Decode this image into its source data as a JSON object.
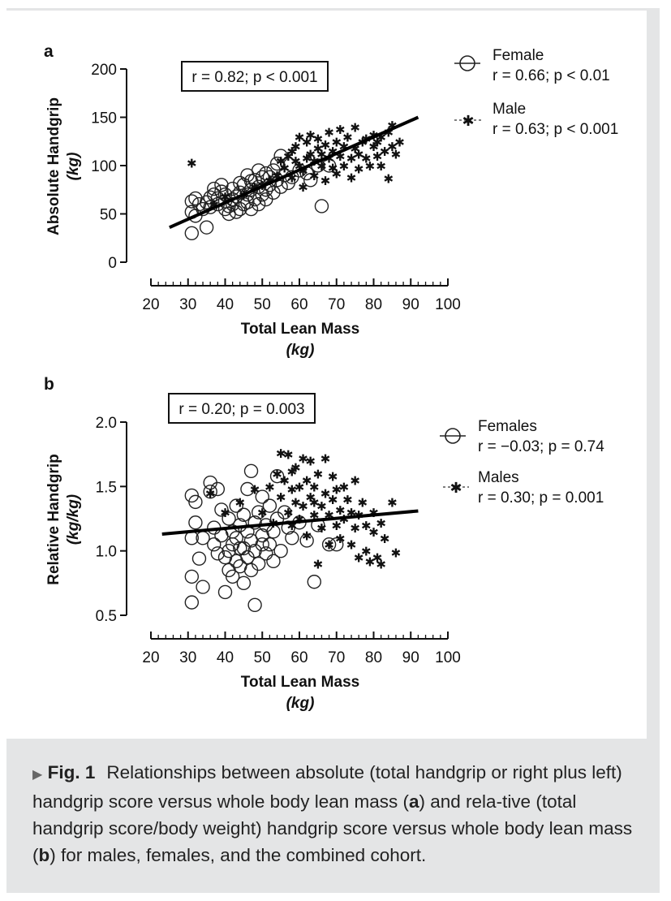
{
  "caption": {
    "fig_label": "Fig. 1",
    "part1": "Relationships between absolute (total handgrip or right plus left) handgrip score versus whole body lean mass (",
    "bold_a": "a",
    "part2": ") and rela-tive (total handgrip score/body weight) handgrip score versus whole body lean mass (",
    "bold_b": "b",
    "part3": ") for males, females, and the combined cohort."
  },
  "chart_data": [
    {
      "type": "scatter",
      "panel_label": "a",
      "xlabel": "Total Lean Mass",
      "xlabel_unit": "(kg)",
      "ylabel": "Absolute Handgrip",
      "ylabel_unit": "(kg)",
      "xlim": [
        20,
        100
      ],
      "ylim": [
        0,
        200
      ],
      "xticks": [
        "20",
        "30",
        "40",
        "50",
        "60",
        "70",
        "80",
        "90",
        "100"
      ],
      "yticks": [
        "0",
        "50",
        "100",
        "150",
        "200"
      ],
      "annotation": "r = 0.82; p < 0.001",
      "legend_position": "top-right",
      "series": [
        {
          "name": "Female",
          "stat": "r = 0.66; p < 0.01",
          "marker": "circle",
          "points": [
            [
              31,
              30
            ],
            [
              31,
              52
            ],
            [
              31,
              63
            ],
            [
              32,
              66
            ],
            [
              32,
              48
            ],
            [
              33,
              60
            ],
            [
              34,
              55
            ],
            [
              35,
              62
            ],
            [
              35,
              36
            ],
            [
              36,
              57
            ],
            [
              37,
              70
            ],
            [
              37,
              76
            ],
            [
              38,
              60
            ],
            [
              38,
              66
            ],
            [
              39,
              73
            ],
            [
              39,
              80
            ],
            [
              40,
              55
            ],
            [
              40,
              63
            ],
            [
              40,
              70
            ],
            [
              41,
              50
            ],
            [
              41,
              58
            ],
            [
              42,
              65
            ],
            [
              42,
              60
            ],
            [
              43,
              68
            ],
            [
              43,
              52
            ],
            [
              44,
              55
            ],
            [
              44,
              72
            ],
            [
              45,
              60
            ],
            [
              45,
              80
            ],
            [
              46,
              62
            ],
            [
              46,
              70
            ],
            [
              47,
              55
            ],
            [
              47,
              75
            ],
            [
              48,
              65
            ],
            [
              48,
              85
            ],
            [
              49,
              60
            ],
            [
              49,
              78
            ],
            [
              50,
              70
            ],
            [
              50,
              88
            ],
            [
              51,
              75
            ],
            [
              51,
              65
            ],
            [
              52,
              80
            ],
            [
              53,
              72
            ],
            [
              53,
              95
            ],
            [
              54,
              85
            ],
            [
              55,
              78
            ],
            [
              55,
              110
            ],
            [
              56,
              90
            ],
            [
              57,
              82
            ],
            [
              58,
              88
            ],
            [
              60,
              95
            ],
            [
              62,
              92
            ],
            [
              63,
              85
            ],
            [
              65,
              100
            ],
            [
              66,
              58
            ],
            [
              68,
              100
            ],
            [
              46,
              90
            ],
            [
              49,
              95
            ],
            [
              44,
              82
            ],
            [
              51,
              92
            ],
            [
              54,
              102
            ],
            [
              42,
              76
            ],
            [
              47,
              84
            ],
            [
              52,
              88
            ],
            [
              36,
              67
            ]
          ]
        },
        {
          "name": "Male",
          "stat": "r = 0.63; p < 0.001",
          "marker": "star",
          "points": [
            [
              31,
              103
            ],
            [
              37,
              60
            ],
            [
              40,
              68
            ],
            [
              45,
              70
            ],
            [
              48,
              78
            ],
            [
              50,
              80
            ],
            [
              52,
              85
            ],
            [
              54,
              90
            ],
            [
              55,
              105
            ],
            [
              56,
              98
            ],
            [
              57,
              110
            ],
            [
              58,
              115
            ],
            [
              58,
              88
            ],
            [
              59,
              120
            ],
            [
              60,
              100
            ],
            [
              60,
              130
            ],
            [
              61,
              95
            ],
            [
              62,
              108
            ],
            [
              62,
              125
            ],
            [
              63,
              112
            ],
            [
              63,
              132
            ],
            [
              64,
              90
            ],
            [
              64,
              105
            ],
            [
              65,
              118
            ],
            [
              65,
              128
            ],
            [
              66,
              100
            ],
            [
              66,
              112
            ],
            [
              67,
              85
            ],
            [
              67,
              122
            ],
            [
              68,
              108
            ],
            [
              68,
              135
            ],
            [
              69,
              98
            ],
            [
              69,
              115
            ],
            [
              70,
              125
            ],
            [
              70,
              92
            ],
            [
              71,
              110
            ],
            [
              71,
              138
            ],
            [
              72,
              100
            ],
            [
              72,
              120
            ],
            [
              73,
              130
            ],
            [
              74,
              108
            ],
            [
              74,
              88
            ],
            [
              75,
              118
            ],
            [
              75,
              140
            ],
            [
              76,
              112
            ],
            [
              76,
              97
            ],
            [
              77,
              125
            ],
            [
              78,
              108
            ],
            [
              78,
              128
            ],
            [
              79,
              100
            ],
            [
              80,
              120
            ],
            [
              80,
              132
            ],
            [
              81,
              110
            ],
            [
              81,
              125
            ],
            [
              82,
              100
            ],
            [
              82,
              130
            ],
            [
              83,
              115
            ],
            [
              84,
              87
            ],
            [
              84,
              135
            ],
            [
              85,
              120
            ],
            [
              85,
              142
            ],
            [
              86,
              112
            ],
            [
              87,
              125
            ],
            [
              61,
              78
            ],
            [
              59,
              105
            ]
          ]
        }
      ],
      "fit_line": {
        "x": [
          25,
          92
        ],
        "y": [
          36,
          150
        ]
      }
    },
    {
      "type": "scatter",
      "panel_label": "b",
      "xlabel": "Total Lean Mass",
      "xlabel_unit": "(kg)",
      "ylabel": "Relative Handgrip",
      "ylabel_unit": "(kg/kg)",
      "xlim": [
        20,
        100
      ],
      "ylim": [
        0.5,
        2.0
      ],
      "xticks": [
        "20",
        "30",
        "40",
        "50",
        "60",
        "70",
        "80",
        "90",
        "100"
      ],
      "yticks": [
        "0.5",
        "1.0",
        "1.5",
        "2.0"
      ],
      "annotation": "r = 0.20; p = 0.003",
      "legend_position": "top-right",
      "series": [
        {
          "name": "Females",
          "stat": "r = −0.03; p = 0.74",
          "marker": "circle",
          "points": [
            [
              31,
              0.6
            ],
            [
              31,
              0.8
            ],
            [
              31,
              1.1
            ],
            [
              31,
              1.43
            ],
            [
              32,
              1.38
            ],
            [
              32,
              1.22
            ],
            [
              33,
              0.94
            ],
            [
              34,
              0.72
            ],
            [
              34,
              1.1
            ],
            [
              36,
              1.46
            ],
            [
              36,
              1.53
            ],
            [
              37,
              1.18
            ],
            [
              37,
              1.05
            ],
            [
              38,
              1.48
            ],
            [
              38,
              0.98
            ],
            [
              39,
              1.12
            ],
            [
              39,
              1.32
            ],
            [
              40,
              0.68
            ],
            [
              40,
              0.95
            ],
            [
              41,
              1.0
            ],
            [
              41,
              0.85
            ],
            [
              41,
              1.25
            ],
            [
              42,
              0.8
            ],
            [
              42,
              1.05
            ],
            [
              43,
              1.1
            ],
            [
              43,
              0.92
            ],
            [
              43,
              1.35
            ],
            [
              44,
              1.2
            ],
            [
              44,
              0.88
            ],
            [
              45,
              1.02
            ],
            [
              45,
              1.28
            ],
            [
              45,
              0.75
            ],
            [
              46,
              1.15
            ],
            [
              46,
              0.95
            ],
            [
              46,
              1.48
            ],
            [
              47,
              1.08
            ],
            [
              47,
              0.85
            ],
            [
              47,
              1.62
            ],
            [
              48,
              1.22
            ],
            [
              48,
              0.58
            ],
            [
              48,
              1.0
            ],
            [
              49,
              1.3
            ],
            [
              49,
              0.9
            ],
            [
              50,
              1.12
            ],
            [
              50,
              1.42
            ],
            [
              51,
              0.98
            ],
            [
              51,
              1.2
            ],
            [
              52,
              1.05
            ],
            [
              52,
              1.35
            ],
            [
              53,
              0.92
            ],
            [
              53,
              1.15
            ],
            [
              54,
              1.25
            ],
            [
              54,
              1.58
            ],
            [
              55,
              1.0
            ],
            [
              56,
              1.3
            ],
            [
              57,
              1.18
            ],
            [
              58,
              1.1
            ],
            [
              60,
              1.22
            ],
            [
              62,
              1.08
            ],
            [
              64,
              0.76
            ],
            [
              65,
              1.2
            ],
            [
              68,
              1.05
            ],
            [
              70,
              1.05
            ],
            [
              42,
              1.15
            ],
            [
              44,
              1.02
            ],
            [
              50,
              1.05
            ]
          ]
        },
        {
          "name": "Males",
          "stat": "r = 0.30; p = 0.001",
          "marker": "star",
          "points": [
            [
              36,
              1.45
            ],
            [
              40,
              1.3
            ],
            [
              44,
              1.38
            ],
            [
              48,
              1.48
            ],
            [
              50,
              1.3
            ],
            [
              52,
              1.5
            ],
            [
              53,
              1.22
            ],
            [
              54,
              1.6
            ],
            [
              55,
              1.76
            ],
            [
              55,
              1.42
            ],
            [
              56,
              1.55
            ],
            [
              57,
              1.3
            ],
            [
              57,
              1.75
            ],
            [
              58,
              1.48
            ],
            [
              58,
              1.2
            ],
            [
              59,
              1.38
            ],
            [
              59,
              1.65
            ],
            [
              60,
              1.5
            ],
            [
              60,
              1.25
            ],
            [
              61,
              1.72
            ],
            [
              61,
              1.35
            ],
            [
              62,
              1.55
            ],
            [
              62,
              1.12
            ],
            [
              63,
              1.42
            ],
            [
              63,
              1.7
            ],
            [
              64,
              1.28
            ],
            [
              64,
              1.5
            ],
            [
              65,
              1.6
            ],
            [
              65,
              0.9
            ],
            [
              66,
              1.35
            ],
            [
              66,
              1.18
            ],
            [
              67,
              1.45
            ],
            [
              67,
              1.72
            ],
            [
              68,
              1.28
            ],
            [
              68,
              1.05
            ],
            [
              69,
              1.4
            ],
            [
              69,
              1.58
            ],
            [
              70,
              1.2
            ],
            [
              70,
              1.48
            ],
            [
              71,
              1.32
            ],
            [
              71,
              1.1
            ],
            [
              72,
              1.5
            ],
            [
              72,
              1.25
            ],
            [
              73,
              1.4
            ],
            [
              74,
              1.05
            ],
            [
              74,
              1.3
            ],
            [
              75,
              1.55
            ],
            [
              75,
              1.18
            ],
            [
              76,
              0.95
            ],
            [
              76,
              1.28
            ],
            [
              77,
              1.38
            ],
            [
              78,
              1.2
            ],
            [
              78,
              1.0
            ],
            [
              79,
              0.92
            ],
            [
              80,
              1.15
            ],
            [
              80,
              1.3
            ],
            [
              81,
              0.95
            ],
            [
              82,
              1.22
            ],
            [
              82,
              0.9
            ],
            [
              83,
              1.1
            ],
            [
              85,
              1.38
            ],
            [
              86,
              0.99
            ],
            [
              64,
              1.38
            ],
            [
              58,
              1.62
            ]
          ]
        }
      ],
      "fit_line": {
        "x": [
          23,
          92
        ],
        "y": [
          1.13,
          1.31
        ]
      }
    }
  ]
}
